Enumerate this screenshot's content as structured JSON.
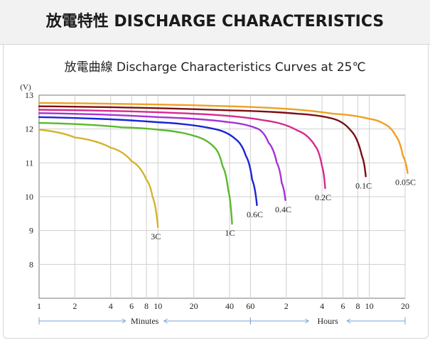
{
  "header": {
    "title": "放電特性 DISCHARGE CHARACTERISTICS"
  },
  "chart_data": {
    "type": "line",
    "title": "放電曲線 Discharge Characteristics Curves at 25℃",
    "ylabel": "(V)",
    "ylim": [
      7,
      13
    ],
    "yticks": [
      8,
      9,
      10,
      11,
      12,
      13
    ],
    "x_scale": "log",
    "x_sections": [
      {
        "label": "Minutes",
        "ticks": [
          "1",
          "2",
          "4",
          "6",
          "8",
          "10",
          "20",
          "40",
          "60"
        ]
      },
      {
        "label": "Hours",
        "ticks": [
          "2",
          "4",
          "6",
          "8",
          "10",
          "20"
        ]
      }
    ],
    "grid": true,
    "series": [
      {
        "name": "3C",
        "color": "#d4b42a",
        "points": [
          [
            1,
            11.98
          ],
          [
            2,
            11.75
          ],
          [
            4,
            11.45
          ],
          [
            6,
            11.05
          ],
          [
            8,
            10.5
          ],
          [
            9,
            10.0
          ],
          [
            10,
            9.1
          ]
        ]
      },
      {
        "name": "1C",
        "color": "#5cb82e",
        "points": [
          [
            1,
            12.18
          ],
          [
            5,
            12.05
          ],
          [
            10,
            11.98
          ],
          [
            20,
            11.8
          ],
          [
            30,
            11.45
          ],
          [
            35,
            10.9
          ],
          [
            39,
            10.2
          ],
          [
            42,
            9.2
          ]
        ]
      },
      {
        "name": "0.6C",
        "color": "#1a25d6",
        "points": [
          [
            1,
            12.35
          ],
          [
            10,
            12.2
          ],
          [
            30,
            12.0
          ],
          [
            45,
            11.7
          ],
          [
            55,
            11.2
          ],
          [
            62,
            10.5
          ],
          [
            68,
            9.75
          ]
        ]
      },
      {
        "name": "0.4C",
        "color": "#a533d6",
        "points": [
          [
            1,
            12.47
          ],
          [
            10,
            12.35
          ],
          [
            40,
            12.2
          ],
          [
            70,
            12.0
          ],
          [
            85,
            11.6
          ],
          [
            100,
            11.0
          ],
          [
            110,
            10.4
          ],
          [
            118,
            9.9
          ]
        ]
      },
      {
        "name": "0.2C",
        "color": "#d62a8e",
        "points": [
          [
            1,
            12.57
          ],
          [
            20,
            12.45
          ],
          [
            80,
            12.25
          ],
          [
            150,
            11.95
          ],
          [
            210,
            11.5
          ],
          [
            240,
            10.9
          ],
          [
            255,
            10.25
          ]
        ]
      },
      {
        "name": "0.1C",
        "color": "#7a0f14",
        "points": [
          [
            1,
            12.67
          ],
          [
            40,
            12.55
          ],
          [
            150,
            12.45
          ],
          [
            300,
            12.3
          ],
          [
            420,
            11.95
          ],
          [
            520,
            11.2
          ],
          [
            560,
            10.6
          ]
        ]
      },
      {
        "name": "0.05C",
        "color": "#f0a020",
        "points": [
          [
            1,
            12.77
          ],
          [
            60,
            12.65
          ],
          [
            300,
            12.45
          ],
          [
            600,
            12.3
          ],
          [
            800,
            12.15
          ],
          [
            1000,
            11.8
          ],
          [
            1150,
            11.2
          ],
          [
            1260,
            10.7
          ]
        ]
      }
    ]
  }
}
